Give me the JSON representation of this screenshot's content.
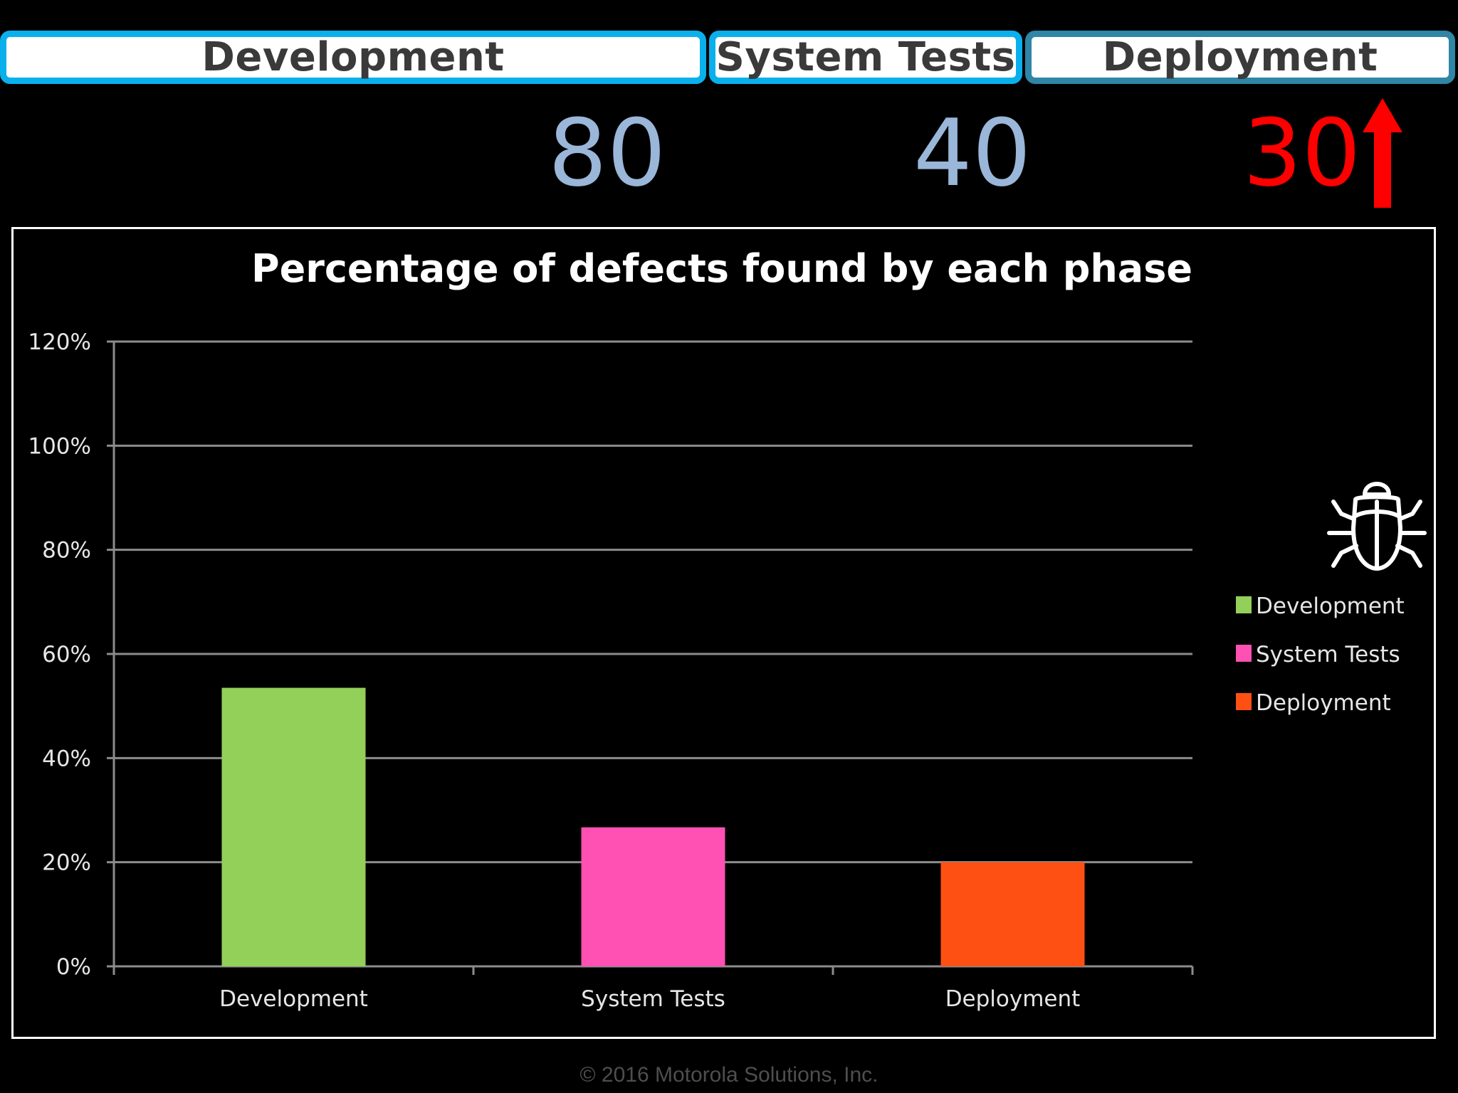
{
  "header": {
    "tabs": [
      {
        "label": "Development"
      },
      {
        "label": "System Tests"
      },
      {
        "label": "Deployment"
      }
    ]
  },
  "counts": [
    {
      "value": "80",
      "color": "#9ab6d8"
    },
    {
      "value": "40",
      "color": "#9ab6d8"
    },
    {
      "value": "30",
      "color": "#ff0000"
    }
  ],
  "indicator": {
    "icon": "up-arrow-icon",
    "color": "#ff0000"
  },
  "bug_icon": "bug-icon",
  "chart_data": {
    "type": "bar",
    "title": "Percentage of defects found by each phase",
    "categories": [
      "Development",
      "System Tests",
      "Deployment"
    ],
    "values": [
      0.535,
      0.267,
      0.2
    ],
    "colors": [
      "#92d05a",
      "#ff50b4",
      "#ff5014"
    ],
    "yticks": [
      "0%",
      "20%",
      "40%",
      "60%",
      "80%",
      "100%",
      "120%"
    ],
    "ylim": [
      0,
      1.2
    ],
    "grid": true,
    "legend": {
      "position": "right",
      "entries": [
        "Development",
        "System Tests",
        "Deployment"
      ]
    }
  },
  "footer": "© 2016 Motorola Solutions, Inc."
}
